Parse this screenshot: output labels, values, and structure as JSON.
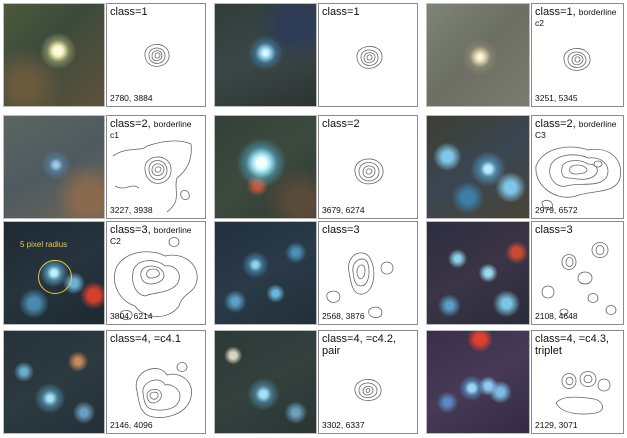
{
  "panels": [
    {
      "id": "r1c1",
      "class_label": "class=1",
      "extra": "",
      "coords": "2780, 3884"
    },
    {
      "id": "r1c2",
      "class_label": "class=1",
      "extra": "",
      "coords": ""
    },
    {
      "id": "r1c3",
      "class_label": "class=1,",
      "small": "borderline",
      "extra": "c2",
      "coords": "3251, 5345"
    },
    {
      "id": "r2c1",
      "class_label": "class=2,",
      "small": "borderline",
      "extra": "c1",
      "coords": "3227, 3938"
    },
    {
      "id": "r2c2",
      "class_label": "class=2",
      "extra": "",
      "coords": "3679, 6274"
    },
    {
      "id": "r2c3",
      "class_label": "class=2,",
      "small": "borderline",
      "extra": "C3",
      "coords": "2979, 6572"
    },
    {
      "id": "r3c1",
      "class_label": "class=3,",
      "small": "borderline",
      "extra": "C2",
      "coords": "3804, 6214"
    },
    {
      "id": "r3c2",
      "class_label": "class=3",
      "extra": "",
      "coords": "2568, 3876"
    },
    {
      "id": "r3c3",
      "class_label": "class=3",
      "extra": "",
      "coords": "2108, 4648"
    },
    {
      "id": "r4c1",
      "class_label": "class=4, =c4.1",
      "extra": "",
      "coords": "2146, 4096"
    },
    {
      "id": "r4c2",
      "class_label": "class=4, =c4.2,",
      "extra": "pair",
      "coords": "3302, 6337"
    },
    {
      "id": "r4c3",
      "class_label": "class=4, =c4.3,",
      "extra": "triplet",
      "coords": "2129, 3071"
    }
  ],
  "annotation": {
    "text": "5 pixel radius",
    "color": "#e6c84a"
  }
}
